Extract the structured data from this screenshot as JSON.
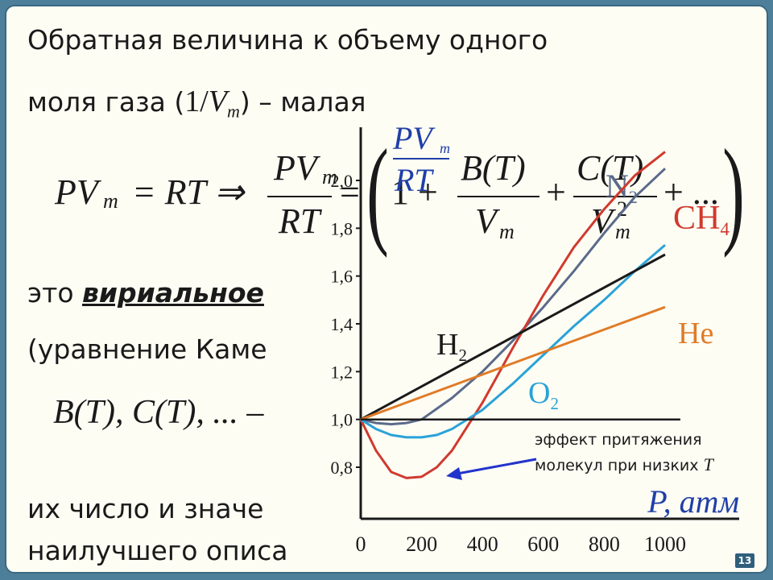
{
  "heading": {
    "line1": "Обратная величина к объему одного",
    "line2_prefix": "моля газа (",
    "line2_formula_num": "1/",
    "line2_formula_var": "V",
    "line2_formula_sub": "m",
    "line2_suffix": ") – малая"
  },
  "formula": {
    "lhs_p": "PV",
    "lhs_sub": "m",
    "eq": "= RT ⇒",
    "frac_num": "PV",
    "frac_num_sub": "m",
    "frac_den": "RT",
    "equals": "=",
    "one_plus": "1 +",
    "b_num": "B(T)",
    "b_den": "V",
    "b_den_sub": "m",
    "plus": "+",
    "c_num": "C(T)",
    "c_den": "V",
    "c_den_sub": "m",
    "c_den_sup": "2",
    "tail": "+ ..."
  },
  "overlay_formula": {
    "num": "PV",
    "num_sub": "m",
    "den": "RT"
  },
  "body": {
    "line_virial_prefix": "это ",
    "line_virial_bold": "вириальное",
    "line_kamer": "(уравнение Каме",
    "line_coeffs": "B(T), C(T), ... –",
    "line_number": "их число и значе",
    "line_best": "наилучшего описа"
  },
  "annotation": {
    "line1": "эффект притяжения",
    "line2": "молекул при низких ",
    "line2_var": "T"
  },
  "chart_data": {
    "type": "line",
    "xlabel": "P, атм",
    "ylabel": "",
    "x_ticks": [
      0,
      200,
      400,
      600,
      800,
      1000
    ],
    "y_ticks": [
      "0,8",
      "1,0",
      "1,2",
      "1,4",
      "1,6",
      "1,8",
      "2,0"
    ],
    "y_tick_values": [
      0.8,
      1.0,
      1.2,
      1.4,
      1.6,
      1.8,
      2.0
    ],
    "xlim": [
      0,
      1000
    ],
    "ylim": [
      0.6,
      2.2
    ],
    "series": [
      {
        "name": "N2",
        "label": "N",
        "sub": "2",
        "color": "#5b6a8a",
        "x": [
          0,
          50,
          100,
          150,
          200,
          300,
          400,
          500,
          600,
          700,
          800,
          900,
          1000
        ],
        "y": [
          1.0,
          0.985,
          0.98,
          0.985,
          1.0,
          1.09,
          1.2,
          1.33,
          1.47,
          1.62,
          1.78,
          1.93,
          2.05
        ]
      },
      {
        "name": "CH4",
        "label": "CH",
        "sub": "4",
        "color": "#d03a2e",
        "x": [
          0,
          50,
          100,
          150,
          200,
          250,
          300,
          400,
          500,
          600,
          700,
          800,
          900,
          1000
        ],
        "y": [
          1.0,
          0.87,
          0.78,
          0.755,
          0.76,
          0.8,
          0.87,
          1.07,
          1.3,
          1.52,
          1.72,
          1.88,
          2.02,
          2.12
        ]
      },
      {
        "name": "O2",
        "label": "O",
        "sub": "2",
        "color": "#2aa2d8",
        "x": [
          0,
          50,
          100,
          150,
          200,
          250,
          300,
          400,
          500,
          600,
          700,
          800,
          900,
          1000
        ],
        "y": [
          1.0,
          0.96,
          0.935,
          0.925,
          0.925,
          0.935,
          0.96,
          1.04,
          1.15,
          1.27,
          1.39,
          1.5,
          1.62,
          1.73
        ]
      },
      {
        "name": "H2",
        "label": "H",
        "sub": "2",
        "color": "#1a1a1a",
        "x": [
          0,
          1000
        ],
        "y": [
          1.0,
          1.69
        ]
      },
      {
        "name": "He",
        "label": "He",
        "sub": "",
        "color": "#e07b26",
        "x": [
          0,
          1000
        ],
        "y": [
          1.0,
          1.47
        ]
      },
      {
        "name": "ideal",
        "label": "",
        "sub": "",
        "color": "#1a1a1a",
        "x": [
          0,
          1050
        ],
        "y": [
          1.0,
          1.0
        ]
      }
    ]
  },
  "page_number": "13"
}
